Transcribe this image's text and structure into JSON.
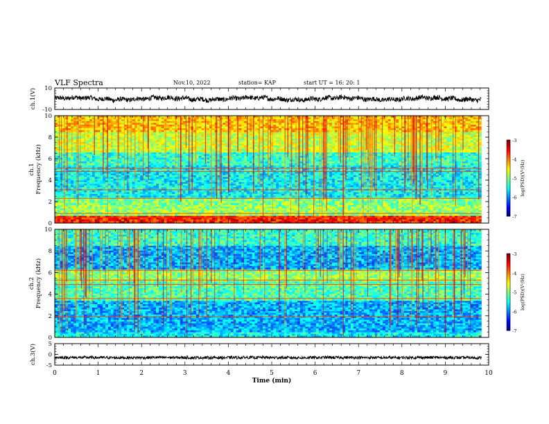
{
  "header": {
    "title": "VLF Spectra",
    "date": "Nov.10, 2022",
    "station": "station= KAP",
    "start": "start  UT =   16: 20: 1"
  },
  "chart_data": [
    {
      "type": "line",
      "panel": "ch1-waveform",
      "ylabel": "ch.1(V)",
      "ylim": [
        -10,
        10
      ],
      "yticks": [
        "10",
        "-10"
      ],
      "xlim": [
        0,
        9.83
      ],
      "note_values": "continuous noisy waveform roughly between -5 and +5 V",
      "series_color": "#000000"
    },
    {
      "type": "heatmap",
      "panel": "ch1-spectrogram",
      "ylabel": "ch.1 Frequency (kHz)",
      "ylim": [
        0,
        10
      ],
      "yticks": [
        "0",
        "2",
        "4",
        "6",
        "8",
        "10"
      ],
      "xlim": [
        0,
        9.83
      ],
      "colorbar": {
        "label": "log(PSD)(V²/Hz)",
        "ticks": [
          "-3",
          "-4",
          "-5",
          "-6",
          "-7"
        ],
        "range": [
          -7,
          -3
        ]
      },
      "bands": [
        {
          "f": [
            0.0,
            0.7
          ],
          "level": -3.6
        },
        {
          "f": [
            0.7,
            1.7
          ],
          "level": -4.9
        },
        {
          "f": [
            1.7,
            2.4
          ],
          "level": -5.0
        },
        {
          "f": [
            2.4,
            5.4
          ],
          "level": -5.5
        },
        {
          "f": [
            5.4,
            6.6
          ],
          "level": -5.3
        },
        {
          "f": [
            6.6,
            8.5
          ],
          "level": -4.7
        },
        {
          "f": [
            8.5,
            10.0
          ],
          "level": -4.3
        }
      ],
      "lines_kHz": [
        0.5,
        0.9,
        2.3,
        3.1,
        4.8,
        5.1
      ]
    },
    {
      "type": "heatmap",
      "panel": "ch2-spectrogram",
      "ylabel": "ch.2 Frequency (kHz)",
      "ylim": [
        0,
        10
      ],
      "yticks": [
        "0",
        "2",
        "4",
        "6",
        "8",
        "10"
      ],
      "xlim": [
        0,
        9.83
      ],
      "colorbar": {
        "label": "log(PSD)(V²/Hz)",
        "ticks": [
          "-3",
          "-4",
          "-5",
          "-6",
          "-7"
        ],
        "range": [
          -7,
          -3
        ]
      },
      "bands": [
        {
          "f": [
            0.0,
            0.5
          ],
          "level": -5.5
        },
        {
          "f": [
            0.5,
            3.4
          ],
          "level": -5.8
        },
        {
          "f": [
            3.4,
            5.2
          ],
          "level": -5.2
        },
        {
          "f": [
            5.2,
            6.3
          ],
          "level": -4.9
        },
        {
          "f": [
            6.3,
            8.5
          ],
          "level": -5.8
        },
        {
          "f": [
            8.5,
            10.0
          ],
          "level": -5.3
        }
      ],
      "lines_kHz": [
        1.9,
        3.6,
        4.9,
        5.3,
        6.2
      ]
    },
    {
      "type": "line",
      "panel": "ch3-waveform",
      "ylabel": "ch.3(V)",
      "ylim": [
        -5,
        5
      ],
      "yticks": [
        "5",
        "0",
        "-5"
      ],
      "xlim": [
        0,
        9.83
      ],
      "note_values": "narrow band oscillation around -1.5 V",
      "series_color": "#000000"
    }
  ],
  "xaxis": {
    "label": "Time (min)",
    "range": [
      0,
      10
    ],
    "ticks": [
      "0",
      "1",
      "2",
      "3",
      "4",
      "5",
      "6",
      "7",
      "8",
      "9",
      "10"
    ]
  }
}
